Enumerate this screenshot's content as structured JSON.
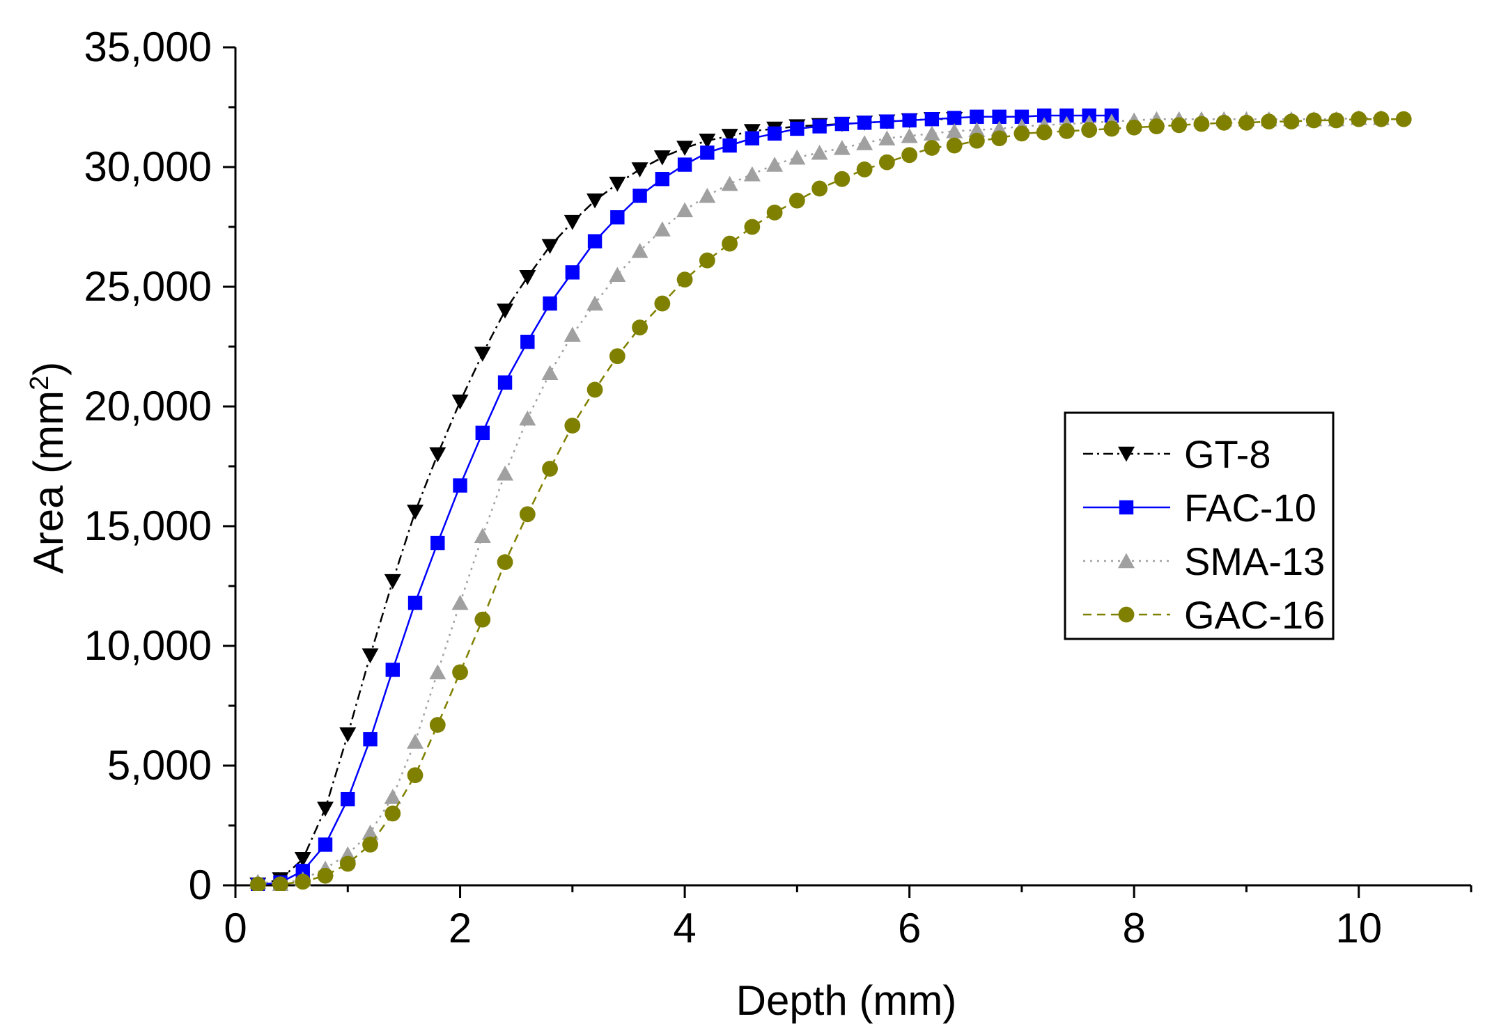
{
  "chart_data": {
    "type": "line",
    "title": "",
    "xlabel": "Depth (mm)",
    "ylabel": "Area (mm",
    "ylabel_sup": "2",
    "ylabel_close": ")",
    "xlim": [
      0,
      11
    ],
    "ylim": [
      0,
      35000
    ],
    "xticks": [
      0,
      2,
      4,
      6,
      8,
      10
    ],
    "xtick_labels": [
      "0",
      "2",
      "4",
      "6",
      "8",
      "10"
    ],
    "yticks": [
      0,
      5000,
      10000,
      15000,
      20000,
      25000,
      30000,
      35000
    ],
    "ytick_labels": [
      "0",
      "5,000",
      "10,000",
      "15,000",
      "20,000",
      "25,000",
      "30,000",
      "35,000"
    ],
    "legend_position": "center-right",
    "series": [
      {
        "name": "GT-8",
        "color": "#000000",
        "marker": "triangle-down",
        "line": "dash-dot",
        "x": [
          0.2,
          0.4,
          0.6,
          0.8,
          1.0,
          1.2,
          1.4,
          1.6,
          1.8,
          2.0,
          2.2,
          2.4,
          2.6,
          2.8,
          3.0,
          3.2,
          3.4,
          3.6,
          3.8,
          4.0,
          4.2,
          4.4,
          4.6,
          4.8,
          5.0,
          5.2,
          5.4,
          5.6,
          5.8,
          6.0,
          6.2,
          6.4
        ],
        "y": [
          30,
          250,
          1100,
          3200,
          6300,
          9600,
          12700,
          15600,
          18000,
          20200,
          22200,
          24000,
          25400,
          26700,
          27700,
          28600,
          29300,
          29900,
          30400,
          30800,
          31100,
          31300,
          31500,
          31600,
          31700,
          31750,
          31800,
          31850,
          31900,
          31950,
          32000,
          32000
        ]
      },
      {
        "name": "FAC-10",
        "color": "#0000ff",
        "marker": "square",
        "line": "solid",
        "x": [
          0.2,
          0.4,
          0.6,
          0.8,
          1.0,
          1.2,
          1.4,
          1.6,
          1.8,
          2.0,
          2.2,
          2.4,
          2.6,
          2.8,
          3.0,
          3.2,
          3.4,
          3.6,
          3.8,
          4.0,
          4.2,
          4.4,
          4.6,
          4.8,
          5.0,
          5.2,
          5.4,
          5.6,
          5.8,
          6.0,
          6.2,
          6.4,
          6.6,
          6.8,
          7.0,
          7.2,
          7.4,
          7.6,
          7.8
        ],
        "y": [
          20,
          120,
          600,
          1700,
          3600,
          6100,
          9000,
          11800,
          14300,
          16700,
          18900,
          21000,
          22700,
          24300,
          25600,
          26900,
          27900,
          28800,
          29500,
          30100,
          30600,
          30900,
          31200,
          31400,
          31600,
          31700,
          31800,
          31850,
          31900,
          31950,
          32000,
          32050,
          32100,
          32100,
          32100,
          32150,
          32150,
          32150,
          32150
        ]
      },
      {
        "name": "SMA-13",
        "color": "#a0a0a0",
        "marker": "triangle-up",
        "line": "dotted",
        "x": [
          0.2,
          0.4,
          0.6,
          0.8,
          1.0,
          1.2,
          1.4,
          1.6,
          1.8,
          2.0,
          2.2,
          2.4,
          2.6,
          2.8,
          3.0,
          3.2,
          3.4,
          3.6,
          3.8,
          4.0,
          4.2,
          4.4,
          4.6,
          4.8,
          5.0,
          5.2,
          5.4,
          5.6,
          5.8,
          6.0,
          6.2,
          6.4,
          6.6,
          6.8,
          7.0,
          7.2,
          7.4,
          7.6,
          7.8,
          8.0,
          8.2,
          8.4,
          8.6,
          8.8,
          9.0,
          9.2,
          9.4,
          9.6,
          9.8,
          10.0,
          10.2
        ],
        "y": [
          150,
          50,
          250,
          700,
          1300,
          2200,
          3700,
          6000,
          8900,
          11800,
          14600,
          17200,
          19500,
          21400,
          23000,
          24300,
          25500,
          26500,
          27400,
          28200,
          28800,
          29300,
          29700,
          30100,
          30400,
          30600,
          30800,
          31000,
          31200,
          31300,
          31400,
          31500,
          31550,
          31600,
          31700,
          31750,
          31800,
          31850,
          31900,
          31950,
          32000,
          32000,
          32000,
          32000,
          32000,
          32000,
          32000,
          32000,
          32000,
          32050,
          32050
        ]
      },
      {
        "name": "GAC-16",
        "color": "#808000",
        "marker": "circle",
        "line": "dashed",
        "x": [
          0.2,
          0.4,
          0.6,
          0.8,
          1.0,
          1.2,
          1.4,
          1.6,
          1.8,
          2.0,
          2.2,
          2.4,
          2.6,
          2.8,
          3.0,
          3.2,
          3.4,
          3.6,
          3.8,
          4.0,
          4.2,
          4.4,
          4.6,
          4.8,
          5.0,
          5.2,
          5.4,
          5.6,
          5.8,
          6.0,
          6.2,
          6.4,
          6.6,
          6.8,
          7.0,
          7.2,
          7.4,
          7.6,
          7.8,
          8.0,
          8.2,
          8.4,
          8.6,
          8.8,
          9.0,
          9.2,
          9.4,
          9.6,
          9.8,
          10.0,
          10.2,
          10.4
        ],
        "y": [
          30,
          40,
          150,
          400,
          900,
          1700,
          3000,
          4600,
          6700,
          8900,
          11100,
          13500,
          15500,
          17400,
          19200,
          20700,
          22100,
          23300,
          24300,
          25300,
          26100,
          26800,
          27500,
          28100,
          28600,
          29100,
          29500,
          29900,
          30200,
          30500,
          30800,
          30900,
          31100,
          31200,
          31400,
          31450,
          31500,
          31550,
          31600,
          31650,
          31700,
          31750,
          31800,
          31850,
          31850,
          31900,
          31900,
          31950,
          31950,
          32000,
          32000,
          32000
        ]
      }
    ]
  }
}
